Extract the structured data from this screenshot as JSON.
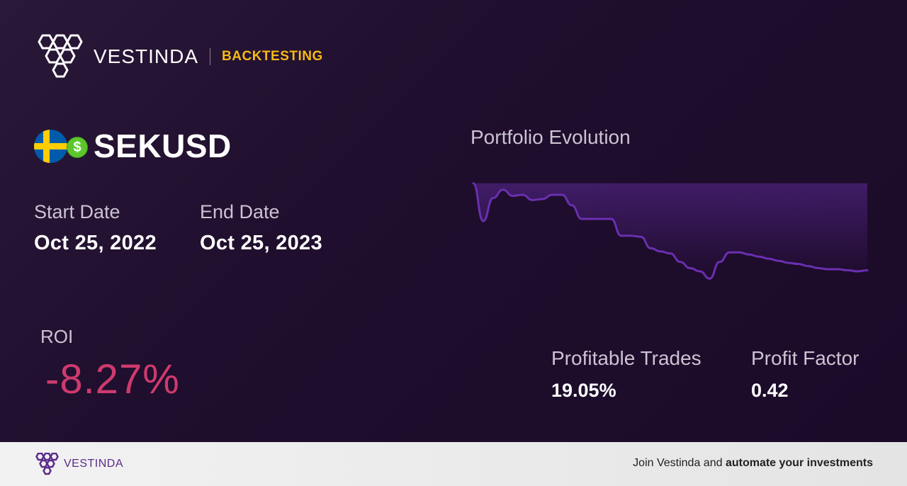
{
  "brand": {
    "name": "VESTINDA",
    "tag": "BACKTESTING",
    "accent": "#f5b916"
  },
  "asset": {
    "pair": "SEKUSD",
    "flag_icon": "sweden-flag-icon",
    "currency_icon": "dollar-icon"
  },
  "dates": {
    "start_label": "Start Date",
    "start_value": "Oct 25, 2022",
    "end_label": "End Date",
    "end_value": "Oct 25, 2023"
  },
  "roi": {
    "label": "ROI",
    "value": "-8.27%",
    "color": "#cf3a6e"
  },
  "chart_data": {
    "type": "area",
    "title": "Portfolio Evolution",
    "x": [
      0,
      0.025,
      0.05,
      0.075,
      0.1,
      0.125,
      0.15,
      0.175,
      0.2,
      0.225,
      0.25,
      0.275,
      0.3,
      0.325,
      0.35,
      0.375,
      0.4,
      0.425,
      0.45,
      0.475,
      0.5,
      0.525,
      0.55,
      0.575,
      0.6,
      0.625,
      0.65,
      0.675,
      0.7,
      0.725,
      0.75,
      0.775,
      0.8,
      0.825,
      0.85,
      0.875,
      0.9,
      0.925,
      0.95,
      0.975,
      1.0
    ],
    "values": [
      100,
      96.4,
      98.6,
      99.4,
      98.8,
      98.9,
      98.4,
      98.5,
      98.9,
      98.9,
      97.9,
      96.6,
      96.6,
      96.6,
      96.6,
      95.0,
      95.0,
      94.9,
      93.8,
      93.5,
      93.3,
      92.5,
      91.9,
      91.6,
      90.9,
      92.5,
      93.4,
      93.4,
      93.2,
      93.0,
      92.8,
      92.6,
      92.4,
      92.3,
      92.1,
      91.9,
      91.8,
      91.8,
      91.7,
      91.6,
      91.7
    ],
    "ylim": [
      89.5,
      101
    ],
    "line_color": "#6a2fb0",
    "grid": false
  },
  "stats": {
    "profitable_label": "Profitable Trades",
    "profitable_value": "19.05%",
    "factor_label": "Profit Factor",
    "factor_value": "0.42"
  },
  "footer": {
    "brand": "VESTINDA",
    "cta_plain": "Join Vestinda and ",
    "cta_bold": "automate your investments"
  }
}
